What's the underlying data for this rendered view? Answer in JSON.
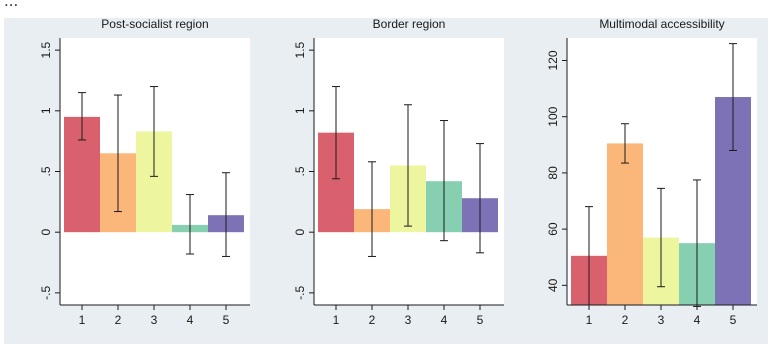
{
  "caption_fragment": "...",
  "colors": {
    "background": "#e8eef2",
    "plot_bg": "#ffffff",
    "bar_1": "#d9616e",
    "bar_2": "#fbb77a",
    "bar_3": "#eef59f",
    "bar_4": "#86cfb0",
    "bar_5": "#7d72b5",
    "error_bar": "#1a1a1a"
  },
  "chart_data": [
    {
      "type": "bar",
      "title": "Post-socialist region",
      "categories": [
        "1",
        "2",
        "3",
        "4",
        "5"
      ],
      "values": [
        0.95,
        0.65,
        0.83,
        0.06,
        0.14
      ],
      "ci_low": [
        0.76,
        0.17,
        0.46,
        -0.18,
        -0.2
      ],
      "ci_high": [
        1.15,
        1.13,
        1.2,
        0.31,
        0.49
      ],
      "ylim": [
        -0.6,
        1.6
      ],
      "yticks": [
        -0.5,
        0,
        0.5,
        1,
        1.5
      ],
      "ytick_labels": [
        "-.5",
        "0",
        ".5",
        "1",
        "1.5"
      ],
      "baseline": 0,
      "grid": false
    },
    {
      "type": "bar",
      "title": "Border region",
      "categories": [
        "1",
        "2",
        "3",
        "4",
        "5"
      ],
      "values": [
        0.82,
        0.19,
        0.55,
        0.42,
        0.28
      ],
      "ci_low": [
        0.44,
        -0.2,
        0.05,
        -0.07,
        -0.17
      ],
      "ci_high": [
        1.2,
        0.58,
        1.05,
        0.92,
        0.73
      ],
      "ylim": [
        -0.6,
        1.6
      ],
      "yticks": [
        -0.5,
        0,
        0.5,
        1,
        1.5
      ],
      "ytick_labels": [
        "-.5",
        "0",
        ".5",
        "1",
        "1.5"
      ],
      "baseline": 0,
      "grid": false
    },
    {
      "type": "bar",
      "title": "Multimodal accessibility",
      "categories": [
        "1",
        "2",
        "3",
        "4",
        "5"
      ],
      "values": [
        50.5,
        90.5,
        57,
        55,
        107
      ],
      "ci_low": [
        33,
        83.5,
        39.5,
        32.5,
        88
      ],
      "ci_high": [
        68,
        97.5,
        74.5,
        77.5,
        126
      ],
      "ylim": [
        33,
        128
      ],
      "yticks": [
        40,
        60,
        80,
        100,
        120
      ],
      "ytick_labels": [
        "40",
        "60",
        "80",
        "100",
        "120"
      ],
      "baseline": 33,
      "grid": false
    }
  ]
}
